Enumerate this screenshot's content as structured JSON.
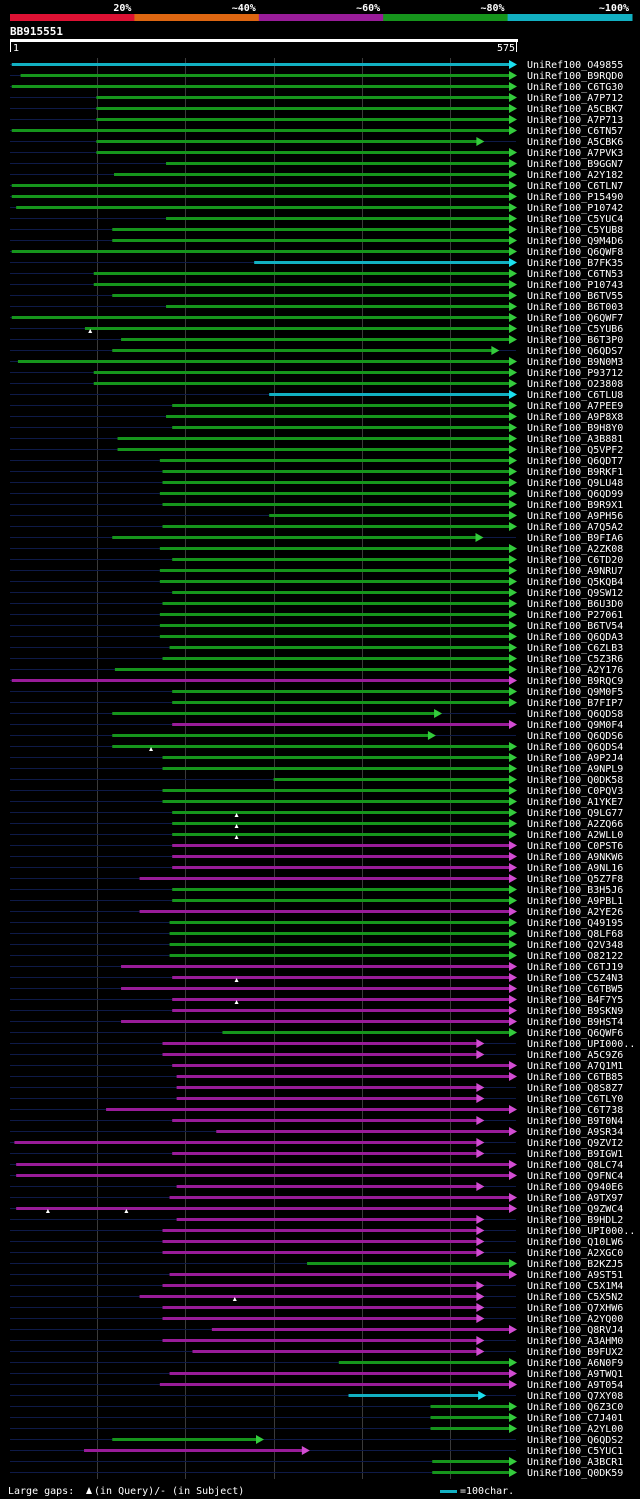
{
  "legend": {
    "labels": [
      "20%",
      "~40%",
      "~60%",
      "~80%",
      "~100%"
    ],
    "colors": [
      "#dd1133",
      "#dd6611",
      "#991c99",
      "#16951c",
      "#12b0c2"
    ]
  },
  "query": {
    "name": "BB915551",
    "start": "1",
    "end": "575"
  },
  "chart_data": {
    "type": "alignment-overview",
    "query_length": 575,
    "hits": [
      {
        "name": "UniRef100_O49855",
        "start": 3,
        "end": 575,
        "color": "cyan",
        "gaps": []
      },
      {
        "name": "UniRef100_B9RQD0",
        "start": 13,
        "end": 575,
        "color": "green",
        "gaps": []
      },
      {
        "name": "UniRef100_C6TG30",
        "start": 3,
        "end": 575,
        "color": "green",
        "gaps": []
      },
      {
        "name": "UniRef100_A7P712",
        "start": 99,
        "end": 575,
        "color": "green",
        "gaps": []
      },
      {
        "name": "UniRef100_A5CBK7",
        "start": 99,
        "end": 575,
        "color": "green",
        "gaps": []
      },
      {
        "name": "UniRef100_A7P713",
        "start": 99,
        "end": 575,
        "color": "green",
        "gaps": []
      },
      {
        "name": "UniRef100_C6TN57",
        "start": 3,
        "end": 575,
        "color": "green",
        "gaps": []
      },
      {
        "name": "UniRef100_A5CBK6",
        "start": 99,
        "end": 538,
        "color": "green",
        "gaps": []
      },
      {
        "name": "UniRef100_A7PVK3",
        "start": 99,
        "end": 575,
        "color": "green",
        "gaps": []
      },
      {
        "name": "UniRef100_B9GGN7",
        "start": 178,
        "end": 575,
        "color": "green",
        "gaps": []
      },
      {
        "name": "UniRef100_A2Y182",
        "start": 119,
        "end": 575,
        "color": "green",
        "gaps": []
      },
      {
        "name": "UniRef100_C6TLN7",
        "start": 3,
        "end": 575,
        "color": "green",
        "gaps": []
      },
      {
        "name": "UniRef100_P15490",
        "start": 3,
        "end": 575,
        "color": "green",
        "gaps": []
      },
      {
        "name": "UniRef100_P10742",
        "start": 8,
        "end": 575,
        "color": "green",
        "gaps": []
      },
      {
        "name": "UniRef100_C5YUC4",
        "start": 178,
        "end": 575,
        "color": "green",
        "gaps": []
      },
      {
        "name": "UniRef100_C5YUB8",
        "start": 117,
        "end": 575,
        "color": "green",
        "gaps": []
      },
      {
        "name": "UniRef100_Q9M4D6",
        "start": 117,
        "end": 575,
        "color": "green",
        "gaps": []
      },
      {
        "name": "UniRef100_Q6QWF8",
        "start": 3,
        "end": 575,
        "color": "green",
        "gaps": []
      },
      {
        "name": "UniRef100_B7FK35",
        "start": 278,
        "end": 575,
        "color": "cyan",
        "gaps": []
      },
      {
        "name": "UniRef100_C6TN53",
        "start": 96,
        "end": 575,
        "color": "green",
        "gaps": []
      },
      {
        "name": "UniRef100_P10743",
        "start": 96,
        "end": 575,
        "color": "green",
        "gaps": []
      },
      {
        "name": "UniRef100_B6TV55",
        "start": 117,
        "end": 575,
        "color": "green",
        "gaps": []
      },
      {
        "name": "UniRef100_B6T003",
        "start": 178,
        "end": 575,
        "color": "green",
        "gaps": []
      },
      {
        "name": "UniRef100_Q6QWF7",
        "start": 3,
        "end": 575,
        "color": "green",
        "gaps": []
      },
      {
        "name": "UniRef100_C5YUB6",
        "start": 86,
        "end": 575,
        "color": "green",
        "gaps": [
          92
        ]
      },
      {
        "name": "UniRef100_B6T3P0",
        "start": 127,
        "end": 575,
        "color": "green",
        "gaps": []
      },
      {
        "name": "UniRef100_Q6QDS7",
        "start": 117,
        "end": 555,
        "color": "green",
        "gaps": []
      },
      {
        "name": "UniRef100_B9N0M3",
        "start": 10,
        "end": 575,
        "color": "green",
        "gaps": []
      },
      {
        "name": "UniRef100_P93712",
        "start": 96,
        "end": 575,
        "color": "green",
        "gaps": []
      },
      {
        "name": "UniRef100_O23808",
        "start": 96,
        "end": 575,
        "color": "green",
        "gaps": []
      },
      {
        "name": "UniRef100_C6TLU8",
        "start": 295,
        "end": 575,
        "color": "cyan",
        "gaps": []
      },
      {
        "name": "UniRef100_A7PEE9",
        "start": 185,
        "end": 575,
        "color": "green",
        "gaps": []
      },
      {
        "name": "UniRef100_A9P8X8",
        "start": 178,
        "end": 575,
        "color": "green",
        "gaps": []
      },
      {
        "name": "UniRef100_B9H8Y0",
        "start": 185,
        "end": 575,
        "color": "green",
        "gaps": []
      },
      {
        "name": "UniRef100_A3B881",
        "start": 123,
        "end": 575,
        "color": "green",
        "gaps": []
      },
      {
        "name": "UniRef100_Q5VPF2",
        "start": 123,
        "end": 575,
        "color": "green",
        "gaps": []
      },
      {
        "name": "UniRef100_Q6QDT7",
        "start": 171,
        "end": 575,
        "color": "green",
        "gaps": []
      },
      {
        "name": "UniRef100_B9RKF1",
        "start": 174,
        "end": 575,
        "color": "green",
        "gaps": []
      },
      {
        "name": "UniRef100_Q9LU48",
        "start": 174,
        "end": 575,
        "color": "green",
        "gaps": []
      },
      {
        "name": "UniRef100_Q6QD99",
        "start": 171,
        "end": 575,
        "color": "green",
        "gaps": []
      },
      {
        "name": "UniRef100_B9R9X1",
        "start": 174,
        "end": 575,
        "color": "green",
        "gaps": []
      },
      {
        "name": "UniRef100_A9PH56",
        "start": 295,
        "end": 575,
        "color": "green",
        "gaps": []
      },
      {
        "name": "UniRef100_A7Q5A2",
        "start": 174,
        "end": 575,
        "color": "green",
        "gaps": []
      },
      {
        "name": "UniRef100_B9FIA6",
        "start": 117,
        "end": 537,
        "color": "green",
        "gaps": []
      },
      {
        "name": "UniRef100_A2ZK08",
        "start": 171,
        "end": 575,
        "color": "green",
        "gaps": []
      },
      {
        "name": "UniRef100_C6TD20",
        "start": 185,
        "end": 575,
        "color": "green",
        "gaps": []
      },
      {
        "name": "UniRef100_A9NRU7",
        "start": 171,
        "end": 575,
        "color": "green",
        "gaps": []
      },
      {
        "name": "UniRef100_Q5KQB4",
        "start": 171,
        "end": 575,
        "color": "green",
        "gaps": []
      },
      {
        "name": "UniRef100_Q9SW12",
        "start": 185,
        "end": 575,
        "color": "green",
        "gaps": []
      },
      {
        "name": "UniRef100_B6U3D0",
        "start": 174,
        "end": 575,
        "color": "green",
        "gaps": []
      },
      {
        "name": "UniRef100_P27061",
        "start": 171,
        "end": 575,
        "color": "green",
        "gaps": []
      },
      {
        "name": "UniRef100_B6TV54",
        "start": 171,
        "end": 575,
        "color": "green",
        "gaps": []
      },
      {
        "name": "UniRef100_Q6QDA3",
        "start": 171,
        "end": 575,
        "color": "green",
        "gaps": []
      },
      {
        "name": "UniRef100_C6ZLB3",
        "start": 182,
        "end": 575,
        "color": "green",
        "gaps": []
      },
      {
        "name": "UniRef100_C5Z3R6",
        "start": 174,
        "end": 575,
        "color": "green",
        "gaps": []
      },
      {
        "name": "UniRef100_A2Y176",
        "start": 120,
        "end": 575,
        "color": "green",
        "gaps": []
      },
      {
        "name": "UniRef100_B9RQC9",
        "start": 3,
        "end": 575,
        "color": "magenta",
        "gaps": []
      },
      {
        "name": "UniRef100_Q9M0F5",
        "start": 185,
        "end": 575,
        "color": "green",
        "gaps": []
      },
      {
        "name": "UniRef100_B7FIP7",
        "start": 185,
        "end": 575,
        "color": "green",
        "gaps": []
      },
      {
        "name": "UniRef100_Q6QDS8",
        "start": 117,
        "end": 490,
        "color": "green",
        "gaps": []
      },
      {
        "name": "UniRef100_Q9M0F4",
        "start": 185,
        "end": 575,
        "color": "magenta",
        "gaps": []
      },
      {
        "name": "UniRef100_Q6QDS6",
        "start": 117,
        "end": 483,
        "color": "green",
        "gaps": []
      },
      {
        "name": "UniRef100_Q6QDS4",
        "start": 117,
        "end": 575,
        "color": "green",
        "gaps": [
          161
        ]
      },
      {
        "name": "UniRef100_A9P2J4",
        "start": 174,
        "end": 575,
        "color": "green",
        "gaps": []
      },
      {
        "name": "UniRef100_A9NPL9",
        "start": 174,
        "end": 575,
        "color": "green",
        "gaps": []
      },
      {
        "name": "UniRef100_Q0DK58",
        "start": 300,
        "end": 575,
        "color": "green",
        "gaps": []
      },
      {
        "name": "UniRef100_C0PQV3",
        "start": 174,
        "end": 575,
        "color": "green",
        "gaps": []
      },
      {
        "name": "UniRef100_A1YKE7",
        "start": 174,
        "end": 575,
        "color": "green",
        "gaps": []
      },
      {
        "name": "UniRef100_Q9LG77",
        "start": 185,
        "end": 575,
        "color": "green",
        "gaps": [
          258
        ]
      },
      {
        "name": "UniRef100_A2ZQ66",
        "start": 185,
        "end": 575,
        "color": "green",
        "gaps": [
          258
        ]
      },
      {
        "name": "UniRef100_A2WLL0",
        "start": 185,
        "end": 575,
        "color": "green",
        "gaps": [
          258
        ]
      },
      {
        "name": "UniRef100_C0PST6",
        "start": 185,
        "end": 575,
        "color": "magenta",
        "gaps": []
      },
      {
        "name": "UniRef100_A9NKW6",
        "start": 185,
        "end": 575,
        "color": "magenta",
        "gaps": []
      },
      {
        "name": "UniRef100_A9NL16",
        "start": 185,
        "end": 575,
        "color": "magenta",
        "gaps": []
      },
      {
        "name": "UniRef100_Q5Z7F8",
        "start": 148,
        "end": 575,
        "color": "magenta",
        "gaps": []
      },
      {
        "name": "UniRef100_B3H5J6",
        "start": 185,
        "end": 575,
        "color": "green",
        "gaps": []
      },
      {
        "name": "UniRef100_A9PBL1",
        "start": 185,
        "end": 575,
        "color": "green",
        "gaps": []
      },
      {
        "name": "UniRef100_A2YE26",
        "start": 148,
        "end": 575,
        "color": "magenta",
        "gaps": []
      },
      {
        "name": "UniRef100_Q49195",
        "start": 182,
        "end": 575,
        "color": "green",
        "gaps": []
      },
      {
        "name": "UniRef100_Q8LF68",
        "start": 182,
        "end": 575,
        "color": "green",
        "gaps": []
      },
      {
        "name": "UniRef100_Q2V348",
        "start": 182,
        "end": 575,
        "color": "green",
        "gaps": []
      },
      {
        "name": "UniRef100_O82122",
        "start": 182,
        "end": 575,
        "color": "green",
        "gaps": []
      },
      {
        "name": "UniRef100_C6TJ19",
        "start": 127,
        "end": 575,
        "color": "magenta",
        "gaps": []
      },
      {
        "name": "UniRef100_C5Z4N3",
        "start": 185,
        "end": 575,
        "color": "magenta",
        "gaps": [
          258
        ]
      },
      {
        "name": "UniRef100_C6TBW5",
        "start": 127,
        "end": 575,
        "color": "magenta",
        "gaps": []
      },
      {
        "name": "UniRef100_B4F7Y5",
        "start": 185,
        "end": 575,
        "color": "magenta",
        "gaps": [
          258
        ]
      },
      {
        "name": "UniRef100_B9SKN9",
        "start": 185,
        "end": 575,
        "color": "magenta",
        "gaps": []
      },
      {
        "name": "UniRef100_B9HST4",
        "start": 127,
        "end": 575,
        "color": "magenta",
        "gaps": []
      },
      {
        "name": "UniRef100_Q6QWF6",
        "start": 242,
        "end": 575,
        "color": "green",
        "gaps": []
      },
      {
        "name": "UniRef100_UPI000..",
        "start": 174,
        "end": 538,
        "color": "magenta",
        "gaps": []
      },
      {
        "name": "UniRef100_A5C9Z6",
        "start": 174,
        "end": 538,
        "color": "magenta",
        "gaps": []
      },
      {
        "name": "UniRef100_A7Q1M1",
        "start": 185,
        "end": 575,
        "color": "magenta",
        "gaps": []
      },
      {
        "name": "UniRef100_C6TB85",
        "start": 190,
        "end": 575,
        "color": "magenta",
        "gaps": []
      },
      {
        "name": "UniRef100_Q8S8Z7",
        "start": 190,
        "end": 538,
        "color": "magenta",
        "gaps": []
      },
      {
        "name": "UniRef100_C6TLY0",
        "start": 190,
        "end": 538,
        "color": "magenta",
        "gaps": []
      },
      {
        "name": "UniRef100_C6T738",
        "start": 110,
        "end": 575,
        "color": "magenta",
        "gaps": []
      },
      {
        "name": "UniRef100_B9T0N4",
        "start": 185,
        "end": 538,
        "color": "magenta",
        "gaps": []
      },
      {
        "name": "UniRef100_A9SR34",
        "start": 235,
        "end": 575,
        "color": "magenta",
        "gaps": []
      },
      {
        "name": "UniRef100_Q9ZVI2",
        "start": 6,
        "end": 538,
        "color": "magenta",
        "gaps": []
      },
      {
        "name": "UniRef100_B9IGW1",
        "start": 185,
        "end": 538,
        "color": "magenta",
        "gaps": []
      },
      {
        "name": "UniRef100_Q8LC74",
        "start": 8,
        "end": 575,
        "color": "magenta",
        "gaps": []
      },
      {
        "name": "UniRef100_Q9FNC4",
        "start": 8,
        "end": 575,
        "color": "magenta",
        "gaps": []
      },
      {
        "name": "UniRef100_Q940E6",
        "start": 190,
        "end": 538,
        "color": "magenta",
        "gaps": []
      },
      {
        "name": "UniRef100_A9TX97",
        "start": 182,
        "end": 575,
        "color": "magenta",
        "gaps": []
      },
      {
        "name": "UniRef100_Q9ZWC4",
        "start": 8,
        "end": 575,
        "color": "magenta",
        "gaps": [
          44,
          133
        ]
      },
      {
        "name": "UniRef100_B9HDL2",
        "start": 190,
        "end": 538,
        "color": "magenta",
        "gaps": []
      },
      {
        "name": "UniRef100_UPI000..",
        "start": 174,
        "end": 538,
        "color": "magenta",
        "gaps": []
      },
      {
        "name": "UniRef100_Q10LW6",
        "start": 174,
        "end": 538,
        "color": "magenta",
        "gaps": []
      },
      {
        "name": "UniRef100_A2XGC0",
        "start": 174,
        "end": 538,
        "color": "magenta",
        "gaps": []
      },
      {
        "name": "UniRef100_B2KZJ5",
        "start": 338,
        "end": 575,
        "color": "green",
        "gaps": []
      },
      {
        "name": "UniRef100_A9ST51",
        "start": 182,
        "end": 575,
        "color": "magenta",
        "gaps": []
      },
      {
        "name": "UniRef100_C5X1M4",
        "start": 174,
        "end": 538,
        "color": "magenta",
        "gaps": []
      },
      {
        "name": "UniRef100_C5X5N2",
        "start": 148,
        "end": 538,
        "color": "magenta",
        "gaps": [
          256
        ]
      },
      {
        "name": "UniRef100_Q7XHW6",
        "start": 174,
        "end": 538,
        "color": "magenta",
        "gaps": []
      },
      {
        "name": "UniRef100_A2YQ00",
        "start": 174,
        "end": 538,
        "color": "magenta",
        "gaps": []
      },
      {
        "name": "UniRef100_Q8RVJ4",
        "start": 230,
        "end": 575,
        "color": "magenta",
        "gaps": []
      },
      {
        "name": "UniRef100_A3AHM0",
        "start": 174,
        "end": 538,
        "color": "magenta",
        "gaps": []
      },
      {
        "name": "UniRef100_B9FUX2",
        "start": 208,
        "end": 538,
        "color": "magenta",
        "gaps": []
      },
      {
        "name": "UniRef100_A6N0F9",
        "start": 374,
        "end": 575,
        "color": "green",
        "gaps": []
      },
      {
        "name": "UniRef100_A9TWQ1",
        "start": 182,
        "end": 575,
        "color": "magenta",
        "gaps": []
      },
      {
        "name": "UniRef100_A9T054",
        "start": 171,
        "end": 575,
        "color": "magenta",
        "gaps": []
      },
      {
        "name": "UniRef100_Q7XY08",
        "start": 385,
        "end": 540,
        "color": "cyan",
        "gaps": []
      },
      {
        "name": "UniRef100_Q6Z3C0",
        "start": 478,
        "end": 575,
        "color": "green",
        "gaps": []
      },
      {
        "name": "UniRef100_C7J401",
        "start": 478,
        "end": 575,
        "color": "green",
        "gaps": []
      },
      {
        "name": "UniRef100_A2YL00",
        "start": 478,
        "end": 575,
        "color": "green",
        "gaps": []
      },
      {
        "name": "UniRef100_Q6QDS2",
        "start": 117,
        "end": 288,
        "color": "green",
        "gaps": []
      },
      {
        "name": "UniRef100_C5YUC1",
        "start": 85,
        "end": 340,
        "color": "magenta",
        "gaps": []
      },
      {
        "name": "UniRef100_A3BCR1",
        "start": 480,
        "end": 575,
        "color": "green",
        "gaps": []
      },
      {
        "name": "UniRef100_Q0DK59",
        "start": 480,
        "end": 575,
        "color": "green",
        "gaps": []
      }
    ]
  },
  "footer": {
    "gaps_text": "Large gaps: ",
    "gaps_query": "(in Query)/",
    "gaps_subject": "- (in Subject)",
    "scale_text": "=100char."
  }
}
